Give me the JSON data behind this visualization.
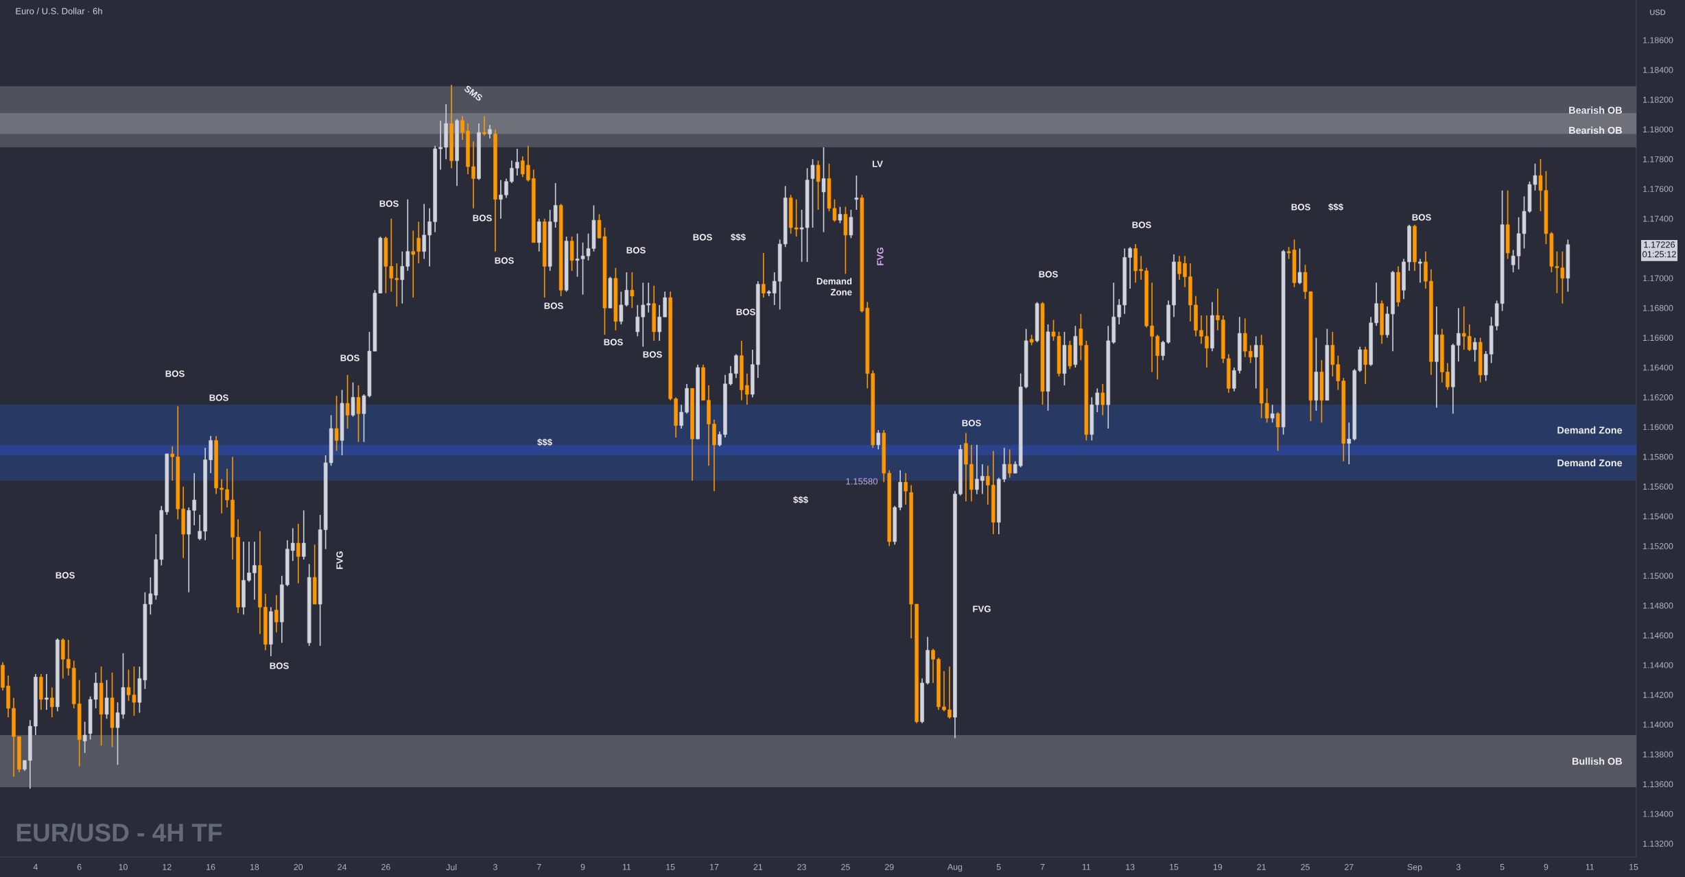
{
  "chart_data": {
    "type": "candlestick",
    "title": "EUR/USD - 4H TF",
    "subtitle": "Euro / U.S. Dollar · 6h",
    "ylabel": "USD",
    "categories": [
      null,
      null,
      null,
      null,
      null,
      null,
      "4",
      null,
      null,
      null,
      null,
      null,
      null,
      null,
      "6",
      null,
      null,
      null,
      null,
      null,
      null,
      null,
      "10",
      null,
      null,
      null,
      null,
      null,
      null,
      null,
      "12",
      null,
      null,
      null,
      null,
      null,
      null,
      null,
      "16",
      null,
      null,
      null,
      null,
      null,
      null,
      null,
      "18",
      null,
      null,
      null,
      null,
      null,
      null,
      null,
      "20",
      null,
      null,
      null,
      null,
      null,
      null,
      null,
      "24",
      null,
      null,
      null,
      null,
      null,
      null,
      null,
      "26",
      null,
      null,
      null,
      null,
      null,
      null,
      null,
      null,
      null,
      null,
      null,
      "Jul",
      null,
      null,
      null,
      null,
      null,
      null,
      null,
      "3",
      null,
      null,
      null,
      null,
      null,
      null,
      null,
      "7",
      null,
      null,
      null,
      null,
      null,
      null,
      null,
      "9",
      null,
      null,
      null,
      null,
      null,
      null,
      null,
      "11",
      null,
      null,
      null,
      null,
      null,
      null,
      null,
      "15",
      null,
      null,
      null,
      null,
      null,
      null,
      null,
      "17",
      null,
      null,
      null,
      null,
      null,
      null,
      null,
      "21",
      null,
      null,
      null,
      null,
      null,
      null,
      null,
      "23",
      null,
      null,
      null,
      null,
      null,
      null,
      null,
      "25",
      null,
      null,
      null,
      null,
      null,
      null,
      null,
      "29",
      null,
      null,
      null,
      null,
      null,
      null,
      null,
      null,
      null,
      null,
      null,
      "Aug",
      null,
      null,
      null,
      null,
      null,
      null,
      null,
      "5",
      null,
      null,
      null,
      null,
      null,
      null,
      null,
      "7",
      null,
      null,
      null,
      null,
      null,
      null,
      null,
      "11",
      null,
      null,
      null,
      null,
      null,
      null,
      null,
      "13",
      null,
      null,
      null,
      null,
      null,
      null,
      null,
      "15",
      null,
      null,
      null,
      null,
      null,
      null,
      null,
      "19",
      null,
      null,
      null,
      null,
      null,
      null,
      null,
      "21",
      null,
      null,
      null,
      null,
      null,
      null,
      null,
      "25",
      null,
      null,
      null,
      null,
      null,
      null,
      null,
      "27",
      null,
      null,
      null,
      null,
      null,
      null,
      null,
      null,
      null,
      null,
      null,
      "Sep",
      null,
      null,
      null,
      null,
      null,
      null,
      null,
      "3",
      null,
      null,
      null,
      null,
      null,
      null,
      null,
      "5",
      null,
      null,
      null,
      null,
      null,
      null,
      null,
      "9",
      null,
      null,
      null,
      null,
      null,
      null,
      null,
      "11",
      null,
      null,
      null,
      null,
      null,
      null,
      null,
      "15"
    ],
    "ohlc": [
      [
        1.144,
        1.1442,
        1.1423,
        1.1425
      ],
      [
        1.1426,
        1.1433,
        1.1405,
        1.1411
      ],
      [
        1.1411,
        1.1418,
        1.1365,
        1.1392
      ],
      [
        1.1392,
        1.1392,
        1.1368,
        1.137
      ],
      [
        1.137,
        1.1376,
        1.1369,
        1.1376
      ],
      [
        1.1376,
        1.1403,
        1.1357,
        1.1399
      ],
      [
        1.1399,
        1.1434,
        1.1393,
        1.1432
      ],
      [
        1.1432,
        1.1434,
        1.141,
        1.1417
      ],
      [
        1.1417,
        1.1434,
        1.141,
        1.1418
      ],
      [
        1.1418,
        1.1425,
        1.1405,
        1.1412
      ],
      [
        1.1412,
        1.1458,
        1.1409,
        1.1457
      ],
      [
        1.1457,
        1.1458,
        1.1431,
        1.1444
      ],
      [
        1.1444,
        1.1457,
        1.1433,
        1.1438
      ],
      [
        1.1438,
        1.1443,
        1.1411,
        1.1414
      ],
      [
        1.1414,
        1.143,
        1.1372,
        1.139
      ],
      [
        1.1389,
        1.1402,
        1.1381,
        1.1393
      ],
      [
        1.1394,
        1.1419,
        1.139,
        1.1417
      ],
      [
        1.1417,
        1.1435,
        1.1411,
        1.1428
      ],
      [
        1.1428,
        1.1439,
        1.1386,
        1.1407
      ],
      [
        1.1407,
        1.143,
        1.1404,
        1.1418
      ],
      [
        1.1418,
        1.1435,
        1.1385,
        1.1398
      ],
      [
        1.1398,
        1.1415,
        1.1373,
        1.1408
      ],
      [
        1.1407,
        1.1448,
        1.1404,
        1.1425
      ],
      [
        1.1425,
        1.1437,
        1.1416,
        1.142
      ],
      [
        1.142,
        1.1439,
        1.1406,
        1.1415
      ],
      [
        1.1415,
        1.1439,
        1.1408,
        1.1431
      ],
      [
        1.143,
        1.1489,
        1.1424,
        1.1481
      ],
      [
        1.1481,
        1.1499,
        1.1474,
        1.1488
      ],
      [
        1.1487,
        1.1528,
        1.1484,
        1.1511
      ],
      [
        1.1511,
        1.1547,
        1.1507,
        1.1544
      ],
      [
        1.1543,
        1.1582,
        1.1541,
        1.1582
      ],
      [
        1.1582,
        1.1587,
        1.1564,
        1.158
      ],
      [
        1.158,
        1.1614,
        1.1538,
        1.1545
      ],
      [
        1.1545,
        1.156,
        1.1512,
        1.1528
      ],
      [
        1.1528,
        1.1546,
        1.1489,
        1.1544
      ],
      [
        1.1544,
        1.1569,
        1.1534,
        1.1551
      ],
      [
        1.1525,
        1.1541,
        1.1524,
        1.153
      ],
      [
        1.153,
        1.1586,
        1.1524,
        1.1578
      ],
      [
        1.1578,
        1.1594,
        1.1569,
        1.1591
      ],
      [
        1.1591,
        1.1594,
        1.1555,
        1.1559
      ],
      [
        1.1559,
        1.1565,
        1.1542,
        1.1558
      ],
      [
        1.1558,
        1.1572,
        1.1546,
        1.1551
      ],
      [
        1.1551,
        1.158,
        1.1511,
        1.1526
      ],
      [
        1.1526,
        1.1538,
        1.1475,
        1.1479
      ],
      [
        1.1479,
        1.1523,
        1.1474,
        1.1497
      ],
      [
        1.1497,
        1.1523,
        1.1496,
        1.1502
      ],
      [
        1.1502,
        1.1523,
        1.1484,
        1.1507
      ],
      [
        1.1507,
        1.153,
        1.1461,
        1.1479
      ],
      [
        1.1479,
        1.1488,
        1.145,
        1.1454
      ],
      [
        1.1454,
        1.1479,
        1.1446,
        1.1476
      ],
      [
        1.1477,
        1.1487,
        1.1462,
        1.1469
      ],
      [
        1.1469,
        1.15,
        1.1455,
        1.1494
      ],
      [
        1.1494,
        1.1524,
        1.1493,
        1.1518
      ],
      [
        1.1517,
        1.1532,
        1.151,
        1.1522
      ],
      [
        1.1522,
        1.1535,
        1.1495,
        1.1513
      ],
      [
        1.1513,
        1.1544,
        1.1511,
        1.1522
      ],
      [
        1.1455,
        1.1508,
        1.1453,
        1.1499
      ],
      [
        1.1499,
        1.1521,
        1.1481,
        1.1481
      ],
      [
        1.1481,
        1.1541,
        1.1453,
        1.1531
      ],
      [
        1.1531,
        1.1581,
        1.1518,
        1.1576
      ],
      [
        1.1576,
        1.1608,
        1.1574,
        1.1599
      ],
      [
        1.1599,
        1.1621,
        1.1584,
        1.1591
      ],
      [
        1.1591,
        1.1625,
        1.1581,
        1.1616
      ],
      [
        1.1616,
        1.1635,
        1.1599,
        1.1608
      ],
      [
        1.1608,
        1.163,
        1.1607,
        1.162
      ],
      [
        1.162,
        1.1628,
        1.159,
        1.1609
      ],
      [
        1.1609,
        1.1622,
        1.159,
        1.1621
      ],
      [
        1.1621,
        1.1664,
        1.162,
        1.1651
      ],
      [
        1.1651,
        1.1692,
        1.1651,
        1.169
      ],
      [
        1.169,
        1.1728,
        1.169,
        1.1727
      ],
      [
        1.1727,
        1.1728,
        1.169,
        1.1708
      ],
      [
        1.1708,
        1.174,
        1.1691,
        1.17
      ],
      [
        1.17,
        1.171,
        1.1681,
        1.1699
      ],
      [
        1.1699,
        1.1718,
        1.1683,
        1.1708
      ],
      [
        1.1708,
        1.1753,
        1.1705,
        1.1718
      ],
      [
        1.1718,
        1.1732,
        1.1687,
        1.1716
      ],
      [
        1.1727,
        1.1738,
        1.171,
        1.1718
      ],
      [
        1.1718,
        1.175,
        1.1713,
        1.1729
      ],
      [
        1.1729,
        1.1747,
        1.1708,
        1.1738
      ],
      [
        1.1738,
        1.1789,
        1.1731,
        1.1787
      ],
      [
        1.1787,
        1.1806,
        1.1773,
        1.1788
      ],
      [
        1.1788,
        1.1817,
        1.178,
        1.1804
      ],
      [
        1.1804,
        1.183,
        1.1774,
        1.1779
      ],
      [
        1.1779,
        1.1807,
        1.1762,
        1.1806
      ],
      [
        1.1806,
        1.1809,
        1.1793,
        1.1798
      ],
      [
        1.1799,
        1.1804,
        1.177,
        1.1775
      ],
      [
        1.1775,
        1.1792,
        1.1747,
        1.1767
      ],
      [
        1.1767,
        1.1804,
        1.1766,
        1.1798
      ],
      [
        1.1798,
        1.1809,
        1.1796,
        1.1797
      ],
      [
        1.1797,
        1.1803,
        1.1794,
        1.18
      ],
      [
        1.1797,
        1.18,
        1.1718,
        1.1753
      ],
      [
        1.1753,
        1.1766,
        1.174,
        1.1756
      ],
      [
        1.1756,
        1.1767,
        1.1754,
        1.1765
      ],
      [
        1.1765,
        1.1779,
        1.1764,
        1.1774
      ],
      [
        1.1774,
        1.1787,
        1.1769,
        1.1778
      ],
      [
        1.1779,
        1.1782,
        1.1768,
        1.177
      ],
      [
        1.1776,
        1.1789,
        1.1765,
        1.1766
      ],
      [
        1.1767,
        1.1773,
        1.1724,
        1.1724
      ],
      [
        1.1724,
        1.174,
        1.1718,
        1.1738
      ],
      [
        1.1738,
        1.174,
        1.1687,
        1.1708
      ],
      [
        1.1708,
        1.1746,
        1.1705,
        1.1738
      ],
      [
        1.1738,
        1.1764,
        1.1734,
        1.1749
      ],
      [
        1.1749,
        1.175,
        1.1688,
        1.1692
      ],
      [
        1.1692,
        1.1728,
        1.1691,
        1.1725
      ],
      [
        1.1725,
        1.1728,
        1.1705,
        1.1712
      ],
      [
        1.1712,
        1.173,
        1.1701,
        1.1713
      ],
      [
        1.1713,
        1.1724,
        1.1689,
        1.1715
      ],
      [
        1.1715,
        1.173,
        1.1712,
        1.172
      ],
      [
        1.172,
        1.1749,
        1.1718,
        1.1739
      ],
      [
        1.1739,
        1.1743,
        1.1727,
        1.1727
      ],
      [
        1.1728,
        1.1734,
        1.1662,
        1.168
      ],
      [
        1.168,
        1.1701,
        1.168,
        1.17
      ],
      [
        1.17,
        1.1707,
        1.1665,
        1.1671
      ],
      [
        1.1671,
        1.1691,
        1.1669,
        1.1682
      ],
      [
        1.1682,
        1.1704,
        1.1681,
        1.1692
      ],
      [
        1.1692,
        1.1704,
        1.168,
        1.1688
      ],
      [
        1.1664,
        1.1682,
        1.1661,
        1.1674
      ],
      [
        1.1674,
        1.1697,
        1.1654,
        1.1682
      ],
      [
        1.1682,
        1.1697,
        1.1677,
        1.1683
      ],
      [
        1.1683,
        1.1695,
        1.1658,
        1.1664
      ],
      [
        1.1664,
        1.1682,
        1.1658,
        1.1674
      ],
      [
        1.1674,
        1.1691,
        1.1674,
        1.1687
      ],
      [
        1.1687,
        1.1691,
        1.1618,
        1.1619
      ],
      [
        1.1619,
        1.162,
        1.1593,
        1.1601
      ],
      [
        1.1601,
        1.1615,
        1.1599,
        1.161
      ],
      [
        1.161,
        1.1629,
        1.1609,
        1.1626
      ],
      [
        1.1626,
        1.1626,
        1.1564,
        1.1592
      ],
      [
        1.1592,
        1.1642,
        1.1592,
        1.164
      ],
      [
        1.164,
        1.1642,
        1.1618,
        1.1618
      ],
      [
        1.1618,
        1.1628,
        1.1574,
        1.1602
      ],
      [
        1.1602,
        1.1605,
        1.1557,
        1.1588
      ],
      [
        1.1588,
        1.1597,
        1.1587,
        1.1595
      ],
      [
        1.1595,
        1.1635,
        1.1593,
        1.1629
      ],
      [
        1.1629,
        1.1641,
        1.1628,
        1.1636
      ],
      [
        1.1636,
        1.1649,
        1.1633,
        1.1648
      ],
      [
        1.1648,
        1.1658,
        1.1618,
        1.1625
      ],
      [
        1.1628,
        1.1636,
        1.1615,
        1.1622
      ],
      [
        1.1622,
        1.1652,
        1.162,
        1.1642
      ],
      [
        1.1642,
        1.1698,
        1.1633,
        1.1696
      ],
      [
        1.1696,
        1.1717,
        1.1687,
        1.169
      ],
      [
        1.169,
        1.1692,
        1.1688,
        1.1691
      ],
      [
        1.169,
        1.1704,
        1.1682,
        1.1698
      ],
      [
        1.1698,
        1.1726,
        1.1679,
        1.1723
      ],
      [
        1.1723,
        1.1762,
        1.1721,
        1.1754
      ],
      [
        1.1754,
        1.1756,
        1.173,
        1.1734
      ],
      [
        1.1734,
        1.1753,
        1.1728,
        1.1733
      ],
      [
        1.1733,
        1.1746,
        1.1711,
        1.1734
      ],
      [
        1.1734,
        1.1774,
        1.1711,
        1.1766
      ],
      [
        1.1767,
        1.178,
        1.1734,
        1.1776
      ],
      [
        1.1776,
        1.1779,
        1.1746,
        1.1765
      ],
      [
        1.1758,
        1.1788,
        1.1731,
        1.1767
      ],
      [
        1.1767,
        1.1777,
        1.1745,
        1.1747
      ],
      [
        1.1747,
        1.1753,
        1.1738,
        1.1739
      ],
      [
        1.1739,
        1.1748,
        1.1737,
        1.1743
      ],
      [
        1.1743,
        1.1748,
        1.1703,
        1.1729
      ],
      [
        1.1729,
        1.1746,
        1.1727,
        1.1741
      ],
      [
        1.1753,
        1.1769,
        1.1746,
        1.1754
      ],
      [
        1.1754,
        1.1756,
        1.1677,
        1.1678
      ],
      [
        1.168,
        1.1684,
        1.1626,
        1.1636
      ],
      [
        1.1636,
        1.1638,
        1.1586,
        1.1588
      ],
      [
        1.1588,
        1.1598,
        1.1585,
        1.1596
      ],
      [
        1.1596,
        1.1598,
        1.1563,
        1.1569
      ],
      [
        1.1569,
        1.1571,
        1.152,
        1.1523
      ],
      [
        1.1523,
        1.1547,
        1.1521,
        1.1546
      ],
      [
        1.1546,
        1.1571,
        1.1544,
        1.1563
      ],
      [
        1.1563,
        1.1569,
        1.1548,
        1.1557
      ],
      [
        1.1556,
        1.1561,
        1.1458,
        1.1481
      ],
      [
        1.1481,
        1.1481,
        1.1401,
        1.1402
      ],
      [
        1.1402,
        1.1431,
        1.1401,
        1.1428
      ],
      [
        1.1428,
        1.1459,
        1.1427,
        1.145
      ],
      [
        1.145,
        1.1451,
        1.1428,
        1.1444
      ],
      [
        1.1444,
        1.1445,
        1.141,
        1.1412
      ],
      [
        1.1412,
        1.1436,
        1.1409,
        1.141
      ],
      [
        1.141,
        1.1439,
        1.1404,
        1.1405
      ],
      [
        1.1405,
        1.1557,
        1.1391,
        1.1555
      ],
      [
        1.1555,
        1.1588,
        1.1554,
        1.1585
      ],
      [
        1.1589,
        1.1596,
        1.155,
        1.1575
      ],
      [
        1.1575,
        1.1588,
        1.155,
        1.1558
      ],
      [
        1.1558,
        1.1588,
        1.1555,
        1.1565
      ],
      [
        1.1564,
        1.1575,
        1.1555,
        1.1567
      ],
      [
        1.1567,
        1.1574,
        1.1548,
        1.1561
      ],
      [
        1.1561,
        1.1584,
        1.1528,
        1.1536
      ],
      [
        1.1536,
        1.1566,
        1.1528,
        1.1565
      ],
      [
        1.1565,
        1.1586,
        1.1563,
        1.1575
      ],
      [
        1.1575,
        1.1585,
        1.1566,
        1.1569
      ],
      [
        1.1569,
        1.1577,
        1.1569,
        1.1575
      ],
      [
        1.1574,
        1.1636,
        1.1573,
        1.1627
      ],
      [
        1.1627,
        1.1666,
        1.1626,
        1.1658
      ],
      [
        1.1659,
        1.1662,
        1.1655,
        1.1657
      ],
      [
        1.1658,
        1.1684,
        1.1657,
        1.1683
      ],
      [
        1.1683,
        1.1684,
        1.1615,
        1.1624
      ],
      [
        1.1624,
        1.1669,
        1.1611,
        1.1664
      ],
      [
        1.1664,
        1.1672,
        1.1658,
        1.1661
      ],
      [
        1.1661,
        1.1664,
        1.1634,
        1.1636
      ],
      [
        1.1636,
        1.1664,
        1.1628,
        1.1655
      ],
      [
        1.1655,
        1.1658,
        1.1639,
        1.1641
      ],
      [
        1.1642,
        1.1668,
        1.164,
        1.1661
      ],
      [
        1.1666,
        1.1676,
        1.1645,
        1.1655
      ],
      [
        1.1655,
        1.1658,
        1.1591,
        1.1595
      ],
      [
        1.1595,
        1.162,
        1.1591,
        1.1615
      ],
      [
        1.1615,
        1.1626,
        1.161,
        1.1623
      ],
      [
        1.1623,
        1.1629,
        1.1608,
        1.1615
      ],
      [
        1.1615,
        1.1668,
        1.1599,
        1.1658
      ],
      [
        1.1657,
        1.1697,
        1.1656,
        1.1674
      ],
      [
        1.1674,
        1.1686,
        1.1669,
        1.1682
      ],
      [
        1.1682,
        1.172,
        1.1676,
        1.1714
      ],
      [
        1.1714,
        1.1721,
        1.1693,
        1.172
      ],
      [
        1.172,
        1.1723,
        1.1697,
        1.1705
      ],
      [
        1.1706,
        1.1715,
        1.1699,
        1.1705
      ],
      [
        1.1705,
        1.1707,
        1.1667,
        1.1668
      ],
      [
        1.1668,
        1.1697,
        1.1637,
        1.1661
      ],
      [
        1.1661,
        1.1662,
        1.1632,
        1.1648
      ],
      [
        1.1648,
        1.1658,
        1.1645,
        1.1657
      ],
      [
        1.1657,
        1.1685,
        1.1656,
        1.1682
      ],
      [
        1.1682,
        1.1716,
        1.1674,
        1.1711
      ],
      [
        1.1711,
        1.1715,
        1.1699,
        1.1703
      ],
      [
        1.171,
        1.1715,
        1.1694,
        1.1701
      ],
      [
        1.1701,
        1.171,
        1.1671,
        1.1682
      ],
      [
        1.1682,
        1.1688,
        1.1661,
        1.1665
      ],
      [
        1.1665,
        1.1675,
        1.1656,
        1.1661
      ],
      [
        1.1661,
        1.1675,
        1.164,
        1.1653
      ],
      [
        1.1653,
        1.1684,
        1.1651,
        1.1675
      ],
      [
        1.1675,
        1.1693,
        1.1665,
        1.1672
      ],
      [
        1.1672,
        1.1675,
        1.1643,
        1.1646
      ],
      [
        1.1646,
        1.1649,
        1.1623,
        1.1626
      ],
      [
        1.1626,
        1.164,
        1.1624,
        1.1638
      ],
      [
        1.1638,
        1.1674,
        1.1636,
        1.1663
      ],
      [
        1.1663,
        1.1673,
        1.1647,
        1.1651
      ],
      [
        1.1651,
        1.1655,
        1.1643,
        1.1647
      ],
      [
        1.1647,
        1.1661,
        1.1626,
        1.1655
      ],
      [
        1.1655,
        1.1662,
        1.1606,
        1.1616
      ],
      [
        1.1616,
        1.1626,
        1.1603,
        1.1606
      ],
      [
        1.1606,
        1.1615,
        1.1603,
        1.1609
      ],
      [
        1.1609,
        1.161,
        1.1584,
        1.16
      ],
      [
        1.16,
        1.1719,
        1.1595,
        1.1718
      ],
      [
        1.1718,
        1.1721,
        1.1713,
        1.1717
      ],
      [
        1.1719,
        1.1726,
        1.1694,
        1.1697
      ],
      [
        1.1697,
        1.172,
        1.1696,
        1.1704
      ],
      [
        1.1704,
        1.1709,
        1.1686,
        1.1691
      ],
      [
        1.1691,
        1.1691,
        1.1604,
        1.1618
      ],
      [
        1.1618,
        1.166,
        1.1611,
        1.1637
      ],
      [
        1.1637,
        1.1645,
        1.1603,
        1.1618
      ],
      [
        1.1618,
        1.1666,
        1.1618,
        1.1655
      ],
      [
        1.1655,
        1.1664,
        1.1634,
        1.1642
      ],
      [
        1.1642,
        1.1648,
        1.1625,
        1.1631
      ],
      [
        1.1631,
        1.1633,
        1.1577,
        1.1589
      ],
      [
        1.1589,
        1.1603,
        1.1575,
        1.1592
      ],
      [
        1.1592,
        1.1639,
        1.1591,
        1.1638
      ],
      [
        1.1638,
        1.1654,
        1.1637,
        1.1652
      ],
      [
        1.1652,
        1.1654,
        1.1629,
        1.1642
      ],
      [
        1.1642,
        1.1674,
        1.1641,
        1.167
      ],
      [
        1.167,
        1.1697,
        1.1668,
        1.1683
      ],
      [
        1.1683,
        1.1685,
        1.1656,
        1.1662
      ],
      [
        1.1662,
        1.1681,
        1.166,
        1.1676
      ],
      [
        1.1676,
        1.1705,
        1.1651,
        1.1704
      ],
      [
        1.1704,
        1.1708,
        1.1681,
        1.1684
      ],
      [
        1.1692,
        1.1713,
        1.1686,
        1.1711
      ],
      [
        1.1711,
        1.1736,
        1.1705,
        1.1735
      ],
      [
        1.1735,
        1.1736,
        1.1705,
        1.1711
      ],
      [
        1.171,
        1.1713,
        1.1697,
        1.1711
      ],
      [
        1.1711,
        1.1718,
        1.1693,
        1.1698
      ],
      [
        1.1698,
        1.1706,
        1.1635,
        1.1644
      ],
      [
        1.1644,
        1.1681,
        1.1613,
        1.1662
      ],
      [
        1.1662,
        1.1666,
        1.163,
        1.1637
      ],
      [
        1.1637,
        1.1643,
        1.1625,
        1.1627
      ],
      [
        1.1627,
        1.1656,
        1.1609,
        1.1655
      ],
      [
        1.1655,
        1.168,
        1.1644,
        1.1663
      ],
      [
        1.1663,
        1.1681,
        1.1652,
        1.1661
      ],
      [
        1.1661,
        1.1669,
        1.1651,
        1.1652
      ],
      [
        1.1652,
        1.166,
        1.1644,
        1.1657
      ],
      [
        1.1657,
        1.166,
        1.163,
        1.1635
      ],
      [
        1.1635,
        1.1651,
        1.1631,
        1.1649
      ],
      [
        1.1649,
        1.1674,
        1.1643,
        1.1668
      ],
      [
        1.1668,
        1.1685,
        1.1665,
        1.1683
      ],
      [
        1.1683,
        1.1759,
        1.1678,
        1.1736
      ],
      [
        1.1736,
        1.1759,
        1.1713,
        1.1717
      ],
      [
        1.1709,
        1.1719,
        1.1704,
        1.1715
      ],
      [
        1.1715,
        1.1741,
        1.1706,
        1.173
      ],
      [
        1.173,
        1.1755,
        1.172,
        1.1745
      ],
      [
        1.1745,
        1.1765,
        1.1744,
        1.1763
      ],
      [
        1.1763,
        1.1777,
        1.1759,
        1.1769
      ],
      [
        1.1769,
        1.178,
        1.1745,
        1.1759
      ],
      [
        1.1759,
        1.1772,
        1.1723,
        1.173
      ],
      [
        1.173,
        1.1731,
        1.1704,
        1.1708
      ],
      [
        1.1708,
        1.1718,
        1.169,
        1.1707
      ],
      [
        1.1707,
        1.1718,
        1.1683,
        1.17
      ],
      [
        1.17,
        1.1726,
        1.1691,
        1.17226
      ],
      null,
      null,
      null,
      null,
      null,
      null,
      null,
      null,
      null,
      null,
      null,
      null
    ],
    "colors": [
      "#ff9800",
      "#ff9800",
      "#ff9800",
      "#ff9800",
      "#d1d4dc",
      "#d1d4dc",
      "#d1d4dc",
      "#ff9800",
      "#d1d4dc",
      "#ff9800",
      "#d1d4dc",
      "#ff9800",
      "#ff9800",
      "#ff9800",
      "#ff9800",
      "#d1d4dc",
      "#d1d4dc",
      "#d1d4dc",
      "#ff9800",
      "#d1d4dc",
      "#ff9800",
      "#d1d4dc",
      "#d1d4dc",
      "#ff9800",
      "#ff9800",
      "#d1d4dc",
      "#d1d4dc",
      "#d1d4dc",
      "#d1d4dc",
      "#d1d4dc",
      "#d1d4dc",
      "#ff9800",
      "#ff9800",
      "#ff9800",
      "#d1d4dc",
      "#d1d4dc",
      "#d1d4dc",
      "#d1d4dc",
      "#d1d4dc",
      "#ff9800",
      "#ff9800",
      "#ff9800",
      "#ff9800",
      "#ff9800",
      "#d1d4dc",
      "#d1d4dc",
      "#d1d4dc",
      "#ff9800",
      "#ff9800",
      "#d1d4dc",
      "#ff9800",
      "#d1d4dc",
      "#d1d4dc",
      "#d1d4dc",
      "#ff9800",
      "#d1d4dc",
      "#d1d4dc",
      "#ff9800",
      "#d1d4dc",
      "#d1d4dc",
      "#d1d4dc",
      "#ff9800",
      "#d1d4dc",
      "#ff9800",
      "#d1d4dc",
      "#ff9800",
      "#d1d4dc",
      "#d1d4dc",
      "#d1d4dc",
      "#d1d4dc",
      "#ff9800",
      "#ff9800",
      "#ff9800",
      "#d1d4dc",
      "#d1d4dc",
      "#ff9800",
      "#ff9800",
      "#d1d4dc",
      "#d1d4dc",
      "#d1d4dc",
      "#d1d4dc",
      "#d1d4dc",
      "#ff9800",
      "#d1d4dc",
      "#ff9800",
      "#ff9800",
      "#ff9800",
      "#d1d4dc",
      "#ff9800",
      "#d1d4dc",
      "#ff9800",
      "#d1d4dc",
      "#d1d4dc",
      "#d1d4dc",
      "#d1d4dc",
      "#ff9800",
      "#ff9800",
      "#ff9800",
      "#d1d4dc",
      "#ff9800",
      "#d1d4dc",
      "#d1d4dc",
      "#ff9800",
      "#d1d4dc",
      "#ff9800",
      "#d1d4dc",
      "#d1d4dc",
      "#d1d4dc",
      "#d1d4dc",
      "#ff9800",
      "#ff9800",
      "#d1d4dc",
      "#ff9800",
      "#d1d4dc",
      "#d1d4dc",
      "#ff9800",
      "#d1d4dc",
      "#d1d4dc",
      "#d1d4dc",
      "#ff9800",
      "#d1d4dc",
      "#d1d4dc",
      "#ff9800",
      "#ff9800",
      "#d1d4dc",
      "#d1d4dc",
      "#ff9800",
      "#d1d4dc",
      "#ff9800",
      "#ff9800",
      "#ff9800",
      "#d1d4dc",
      "#d1d4dc",
      "#d1d4dc",
      "#d1d4dc",
      "#ff9800",
      "#ff9800",
      "#d1d4dc",
      "#d1d4dc",
      "#ff9800",
      "#d1d4dc",
      "#d1d4dc",
      "#d1d4dc",
      "#d1d4dc",
      "#ff9800",
      "#ff9800",
      "#d1d4dc",
      "#d1d4dc",
      "#d1d4dc",
      "#ff9800",
      "#d1d4dc",
      "#ff9800",
      "#ff9800",
      "#d1d4dc",
      "#ff9800",
      "#d1d4dc",
      "#d1d4dc",
      "#ff9800",
      "#ff9800",
      "#ff9800",
      "#d1d4dc",
      "#ff9800",
      "#ff9800",
      "#d1d4dc",
      "#d1d4dc",
      "#ff9800",
      "#ff9800",
      "#ff9800",
      "#d1d4dc",
      "#d1d4dc",
      "#ff9800",
      "#ff9800",
      "#ff9800",
      "#ff9800",
      "#d1d4dc",
      "#d1d4dc",
      "#ff9800",
      "#ff9800",
      "#d1d4dc",
      "#d1d4dc",
      "#ff9800",
      "#ff9800",
      "#d1d4dc",
      "#d1d4dc",
      "#ff9800",
      "#d1d4dc",
      "#d1d4dc",
      "#d1d4dc",
      "#ff9800",
      "#d1d4dc",
      "#ff9800",
      "#d1d4dc",
      "#ff9800",
      "#ff9800",
      "#d1d4dc",
      "#ff9800",
      "#d1d4dc",
      "#ff9800",
      "#ff9800",
      "#d1d4dc",
      "#d1d4dc",
      "#ff9800",
      "#d1d4dc",
      "#d1d4dc",
      "#d1d4dc",
      "#d1d4dc",
      "#d1d4dc",
      "#ff9800",
      "#ff9800",
      "#ff9800",
      "#ff9800",
      "#ff9800",
      "#d1d4dc",
      "#d1d4dc",
      "#d1d4dc",
      "#ff9800",
      "#ff9800",
      "#ff9800",
      "#ff9800",
      "#ff9800",
      "#ff9800",
      "#d1d4dc",
      "#ff9800",
      "#ff9800",
      "#ff9800",
      "#d1d4dc",
      "#d1d4dc",
      "#ff9800",
      "#ff9800",
      "#d1d4dc",
      "#ff9800",
      "#ff9800",
      "#d1d4dc",
      "#ff9800",
      "#d1d4dc",
      "#ff9800",
      "#ff9800",
      "#d1d4dc",
      "#ff9800",
      "#ff9800",
      "#d1d4dc",
      "#ff9800",
      "#d1d4dc",
      "#ff9800",
      "#ff9800",
      "#ff9800",
      "#d1d4dc",
      "#d1d4dc",
      "#d1d4dc",
      "#ff9800",
      "#d1d4dc",
      "#d1d4dc",
      "#ff9800",
      "#d1d4dc",
      "#d1d4dc",
      "#ff9800",
      "#d1d4dc",
      "#d1d4dc",
      "#ff9800",
      "#d1d4dc",
      "#ff9800",
      "#ff9800",
      "#d1d4dc",
      "#ff9800",
      "#ff9800",
      "#d1d4dc",
      "#d1d4dc",
      "#ff9800",
      "#ff9800",
      "#d1d4dc",
      "#ff9800",
      "#d1d4dc",
      "#d1d4dc",
      "#d1d4dc",
      "#d1d4dc",
      "#ff9800",
      "#d1d4dc",
      "#d1d4dc",
      "#d1d4dc",
      "#d1d4dc",
      "#d1d4dc",
      "#ff9800",
      "#ff9800",
      "#ff9800",
      "#ff9800",
      "#ff9800",
      "#d1d4dc",
      null,
      null,
      null,
      null,
      null,
      null,
      null,
      null,
      null,
      null,
      null,
      null
    ],
    "ylim": [
      1.1311,
      1.1887
    ],
    "yticks": [
      {
        "value": 1.132,
        "label": "1.13200"
      },
      {
        "value": 1.134,
        "label": "1.13400"
      },
      {
        "value": 1.136,
        "label": "1.13600"
      },
      {
        "value": 1.138,
        "label": "1.13800"
      },
      {
        "value": 1.14,
        "label": "1.14000"
      },
      {
        "value": 1.142,
        "label": "1.14200"
      },
      {
        "value": 1.144,
        "label": "1.14400"
      },
      {
        "value": 1.146,
        "label": "1.14600"
      },
      {
        "value": 1.148,
        "label": "1.14800"
      },
      {
        "value": 1.15,
        "label": "1.15000"
      },
      {
        "value": 1.152,
        "label": "1.15200"
      },
      {
        "value": 1.154,
        "label": "1.15400"
      },
      {
        "value": 1.156,
        "label": "1.15600"
      },
      {
        "value": 1.158,
        "label": "1.15800"
      },
      {
        "value": 1.16,
        "label": "1.16000"
      },
      {
        "value": 1.162,
        "label": "1.16200"
      },
      {
        "value": 1.164,
        "label": "1.16400"
      },
      {
        "value": 1.166,
        "label": "1.16600"
      },
      {
        "value": 1.168,
        "label": "1.16800"
      },
      {
        "value": 1.17,
        "label": "1.17000"
      },
      {
        "value": 1.174,
        "label": "1.17400"
      },
      {
        "value": 1.176,
        "label": "1.17600"
      },
      {
        "value": 1.178,
        "label": "1.17800"
      },
      {
        "value": 1.18,
        "label": "1.18000"
      },
      {
        "value": 1.182,
        "label": "1.18200"
      },
      {
        "value": 1.184,
        "label": "1.18400"
      },
      {
        "value": 1.186,
        "label": "1.18600"
      }
    ],
    "bands": [
      {
        "axis": "y",
        "from": 1.1797,
        "to": 1.1829,
        "label": "Bearish OB",
        "color": "#4f525d"
      },
      {
        "axis": "y",
        "from": 1.1788,
        "to": 1.1811,
        "label": "Bearish OB",
        "color": "#4f525d"
      },
      {
        "axis": "y",
        "from": 1.1797,
        "to": 1.1811,
        "color": "#6f717a"
      },
      {
        "axis": "y",
        "from": 1.1581,
        "to": 1.1615,
        "label": "Demand Zone",
        "color": "#283a63"
      },
      {
        "axis": "y",
        "from": 1.1564,
        "to": 1.1588,
        "label": "Demand Zone",
        "color": "#283a63"
      },
      {
        "axis": "y",
        "from": 1.1581,
        "to": 1.1588,
        "color": "#2a438c"
      },
      {
        "axis": "y",
        "from": 1.1358,
        "to": 1.1393,
        "label": "Bullish OB",
        "color": "#545761"
      }
    ],
    "annotations": [
      "BOS",
      "BOS",
      "BOS",
      "BOS",
      "FVG",
      "BOS",
      "BOS",
      "SMS",
      "BOS",
      "BOS",
      "$$$",
      "BOS",
      "BOS",
      "BOS",
      "BOS",
      "BOS",
      "$$$",
      "BOS",
      "$$$",
      "Demand Zone",
      "LV",
      "FVG",
      "1.15580",
      "BOS",
      "FVG",
      "BOS",
      "BOS",
      "BOS",
      "$$$",
      "BOS",
      "1.17226",
      "01:25:12"
    ]
  }
}
